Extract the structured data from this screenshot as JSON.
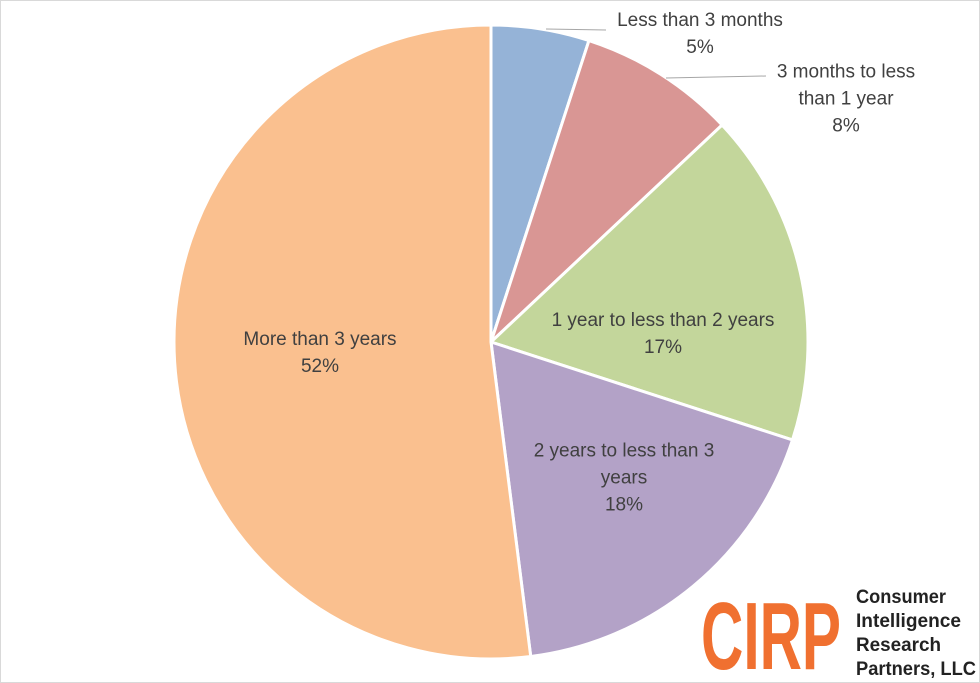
{
  "chart_data": {
    "type": "pie",
    "categories": [
      "Less than 3 months",
      "3 months to less than 1 year",
      "1 year to less than 2 years",
      "2 years to less than 3 years",
      "More than 3 years"
    ],
    "values": [
      5,
      8,
      17,
      18,
      52
    ],
    "value_labels": [
      "5%",
      "8%",
      "17%",
      "18%",
      "52%"
    ],
    "colors": [
      "#95b3d7",
      "#d99694",
      "#c3d69b",
      "#b3a2c7",
      "#fac08f"
    ]
  },
  "logo": {
    "mark": "CIRP",
    "lines": [
      "Consumer",
      "Intelligence",
      "Research",
      "Partners, LLC"
    ]
  }
}
